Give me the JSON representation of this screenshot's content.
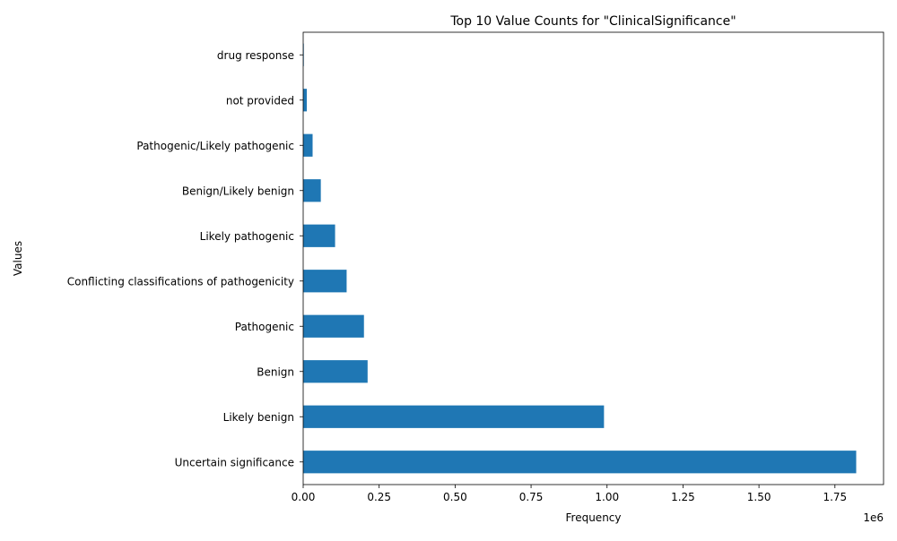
{
  "chart_data": {
    "type": "bar",
    "orientation": "horizontal",
    "title": "Top 10 Value Counts for \"ClinicalSignificance\"",
    "xlabel": "Frequency",
    "ylabel": "Values",
    "x_offset_label": "1e6",
    "xlim": [
      0,
      1910000
    ],
    "x_ticks": [
      0,
      250000,
      500000,
      750000,
      1000000,
      1250000,
      1500000,
      1750000
    ],
    "x_tick_labels": [
      "0.00",
      "0.25",
      "0.50",
      "0.75",
      "1.00",
      "1.25",
      "1.50",
      "1.75"
    ],
    "categories": [
      "Uncertain significance",
      "Likely benign",
      "Benign",
      "Pathogenic",
      "Conflicting classifications of pathogenicity",
      "Likely pathogenic",
      "Benign/Likely benign",
      "Pathogenic/Likely pathogenic",
      "not provided",
      "drug response"
    ],
    "values": [
      1820000,
      990000,
      212000,
      200000,
      143000,
      105000,
      58000,
      31000,
      12000,
      2000
    ],
    "bar_color": "#1f77b4",
    "grid": false,
    "legend": "none"
  }
}
